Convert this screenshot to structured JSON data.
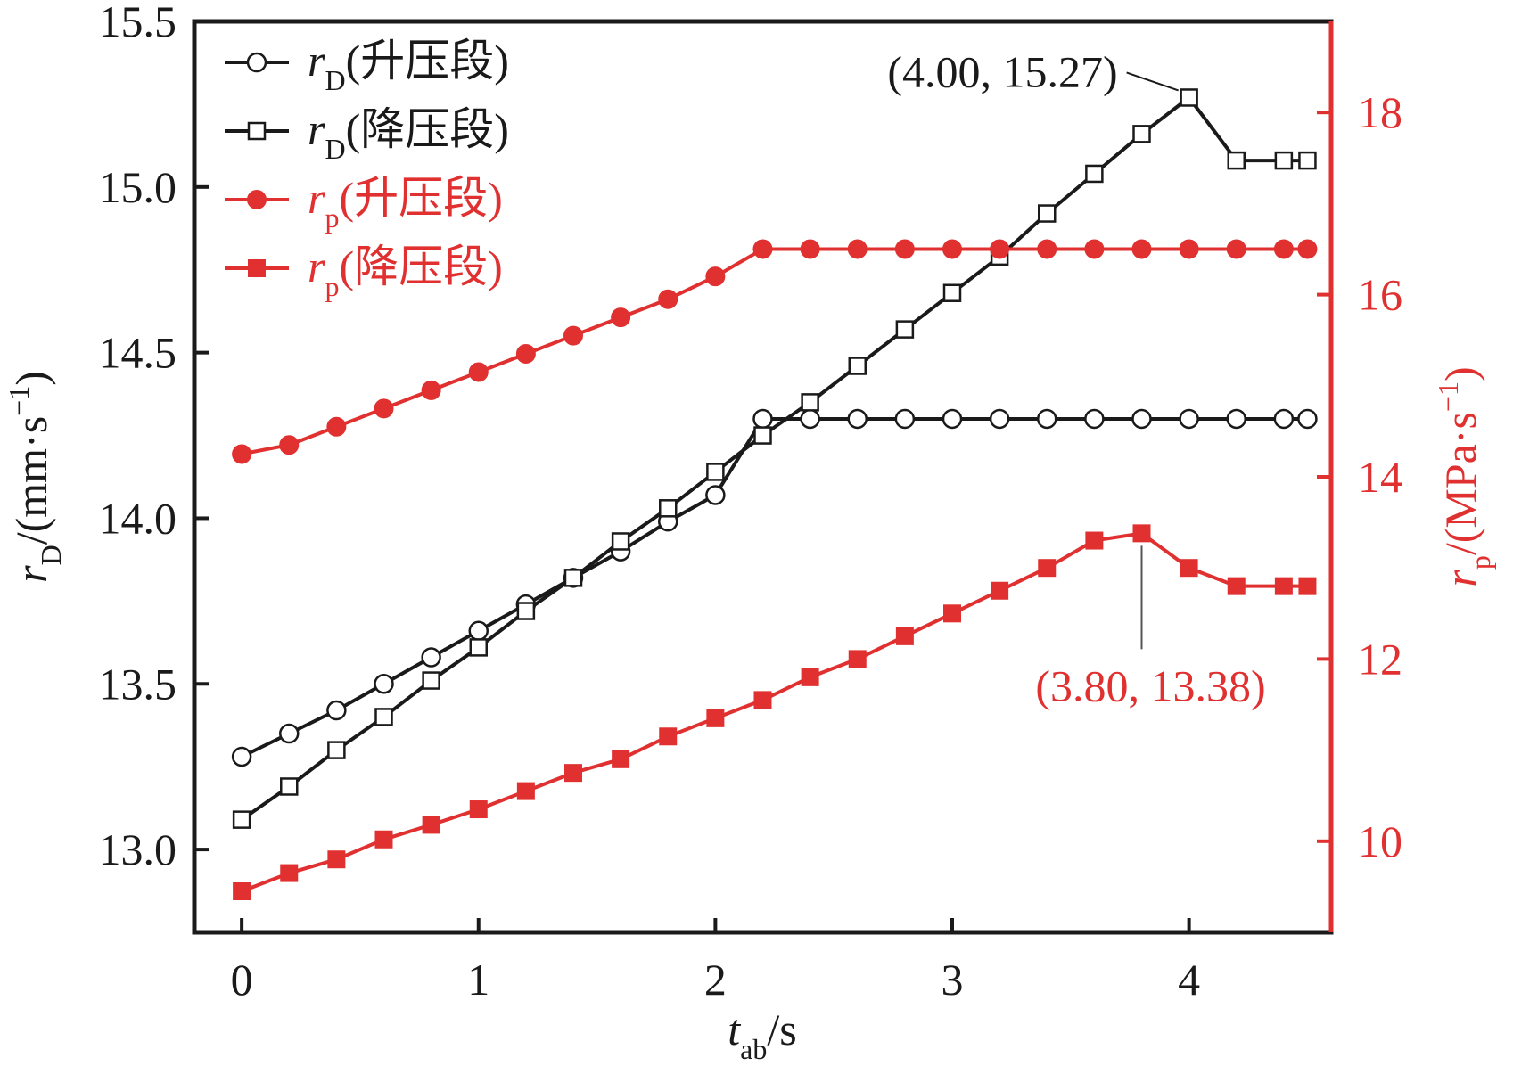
{
  "chart_data": {
    "type": "line",
    "title": "",
    "x": {
      "label_main": "t",
      "label_sub": "ab",
      "label_unit": "/s",
      "range": [
        -0.2,
        4.6
      ],
      "ticks": [
        0,
        1,
        2,
        3,
        4
      ],
      "tick_labels": [
        "0",
        "1",
        "2",
        "3",
        "4"
      ]
    },
    "y_left": {
      "label_main": "r",
      "label_sub": "D",
      "label_unit": "/(mm·s",
      "label_exp": "−1",
      "label_close": ")",
      "range": [
        12.75,
        15.5
      ],
      "ticks": [
        13.0,
        13.5,
        14.0,
        14.5,
        15.0,
        15.5
      ],
      "tick_labels": [
        "13.0",
        "13.5",
        "14.0",
        "14.5",
        "15.0",
        "15.5"
      ],
      "color": "#1a1a1a"
    },
    "y_right": {
      "label_main": "r",
      "label_sub": "p",
      "label_unit": "/(MPa·s",
      "label_exp": "−1",
      "label_close": ")",
      "range": [
        9.0,
        19.0
      ],
      "ticks": [
        10,
        12,
        14,
        16,
        18
      ],
      "tick_labels": [
        "10",
        "12",
        "14",
        "16",
        "18"
      ],
      "color": "#e03030"
    },
    "series": [
      {
        "name": "rD (升压段)",
        "legend_main": "r",
        "legend_sub": "D",
        "legend_text": "(升压段)",
        "axis": "left",
        "color": "#1a1a1a",
        "marker": "circle-open",
        "x": [
          0,
          0.2,
          0.4,
          0.6,
          0.8,
          1.0,
          1.2,
          1.4,
          1.6,
          1.8,
          2.0,
          2.2,
          2.4,
          2.6,
          2.8,
          3.0,
          3.2,
          3.4,
          3.6,
          3.8,
          4.0,
          4.2,
          4.4,
          4.5
        ],
        "y": [
          13.28,
          13.35,
          13.42,
          13.5,
          13.58,
          13.66,
          13.74,
          13.82,
          13.9,
          13.99,
          14.07,
          14.3,
          14.3,
          14.3,
          14.3,
          14.3,
          14.3,
          14.3,
          14.3,
          14.3,
          14.3,
          14.3,
          14.3,
          14.3
        ]
      },
      {
        "name": "rD (降压段)",
        "legend_main": "r",
        "legend_sub": "D",
        "legend_text": "(降压段)",
        "axis": "left",
        "color": "#1a1a1a",
        "marker": "square-open",
        "x": [
          0,
          0.2,
          0.4,
          0.6,
          0.8,
          1.0,
          1.2,
          1.4,
          1.6,
          1.8,
          2.0,
          2.2,
          2.4,
          2.6,
          2.8,
          3.0,
          3.2,
          3.4,
          3.6,
          3.8,
          4.0,
          4.2,
          4.4,
          4.5
        ],
        "y": [
          13.09,
          13.19,
          13.3,
          13.4,
          13.51,
          13.61,
          13.72,
          13.82,
          13.93,
          14.03,
          14.14,
          14.25,
          14.35,
          14.46,
          14.57,
          14.68,
          14.79,
          14.92,
          15.04,
          15.16,
          15.27,
          15.08,
          15.08,
          15.08
        ]
      },
      {
        "name": "rp (升压段)",
        "legend_main": "r",
        "legend_sub": "p",
        "legend_text": "(升压段)",
        "axis": "right",
        "color": "#e03030",
        "marker": "circle-filled",
        "x": [
          0,
          0.2,
          0.4,
          0.6,
          0.8,
          1.0,
          1.2,
          1.4,
          1.6,
          1.8,
          2.0,
          2.2,
          2.4,
          2.6,
          2.8,
          3.0,
          3.2,
          3.4,
          3.6,
          3.8,
          4.0,
          4.2,
          4.4,
          4.5
        ],
        "y": [
          14.25,
          14.35,
          14.55,
          14.75,
          14.95,
          15.15,
          15.35,
          15.55,
          15.75,
          15.95,
          16.2,
          16.5,
          16.5,
          16.5,
          16.5,
          16.5,
          16.5,
          16.5,
          16.5,
          16.5,
          16.5,
          16.5,
          16.5,
          16.5
        ]
      },
      {
        "name": "rp (降压段)",
        "legend_main": "r",
        "legend_sub": "p",
        "legend_text": "(降压段)",
        "axis": "right",
        "color": "#e03030",
        "marker": "square-filled",
        "x": [
          0,
          0.2,
          0.4,
          0.6,
          0.8,
          1.0,
          1.2,
          1.4,
          1.6,
          1.8,
          2.0,
          2.2,
          2.4,
          2.6,
          2.8,
          3.0,
          3.2,
          3.4,
          3.6,
          3.8,
          4.0,
          4.2,
          4.4,
          4.5
        ],
        "y": [
          9.45,
          9.65,
          9.8,
          10.02,
          10.18,
          10.35,
          10.55,
          10.75,
          10.9,
          11.15,
          11.35,
          11.55,
          11.8,
          12.0,
          12.25,
          12.5,
          12.75,
          13.0,
          13.3,
          13.38,
          13.0,
          12.8,
          12.8,
          12.8
        ]
      }
    ],
    "annotations": [
      {
        "text": "(4.00, 15.27)",
        "x": 4.0,
        "y": 15.27,
        "axis": "left",
        "color": "#1a1a1a"
      },
      {
        "text": "(3.80, 13.38)",
        "x": 3.8,
        "y": 13.38,
        "axis": "right",
        "color": "#e03030"
      }
    ],
    "legend": {
      "position": "top-left"
    },
    "grid": false
  }
}
